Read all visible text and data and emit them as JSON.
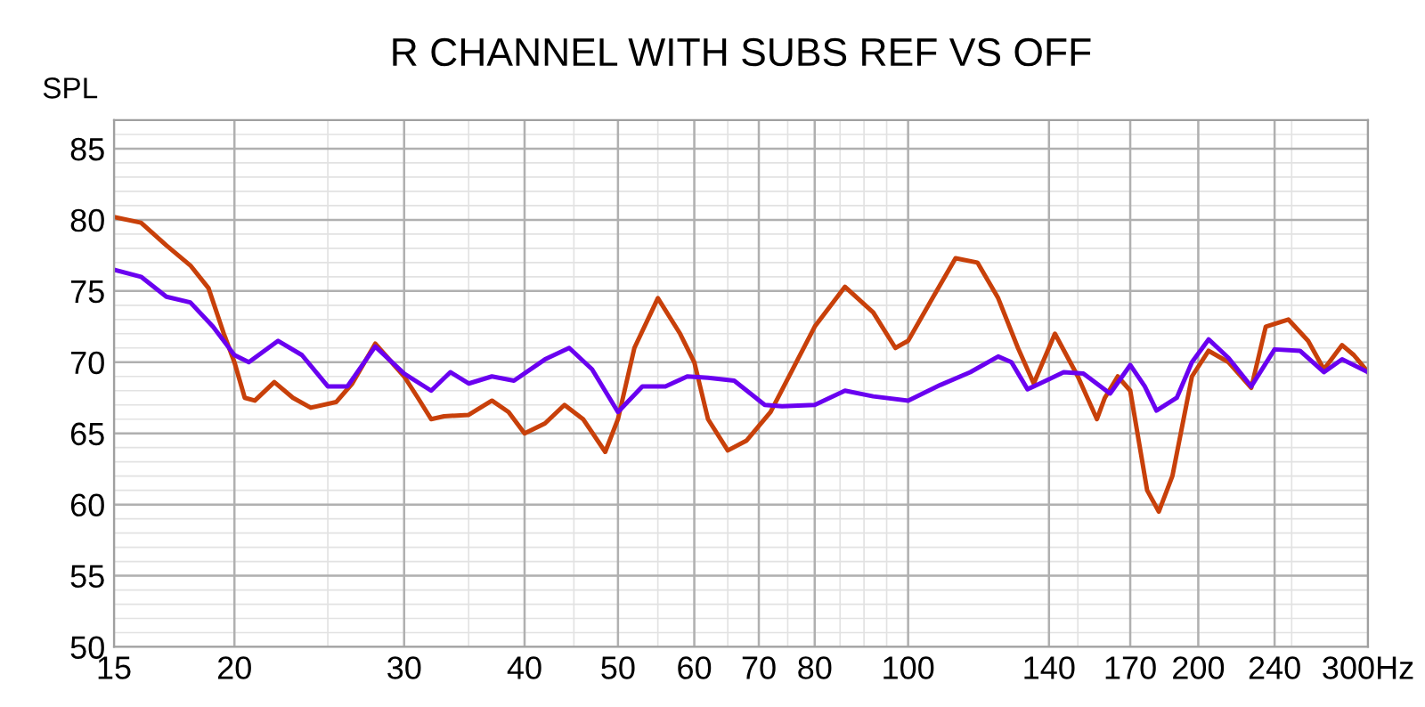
{
  "chart_data": {
    "type": "line",
    "title": "R CHANNEL WITH SUBS REF VS OFF",
    "ylabel": "SPL",
    "log": "x",
    "grid": true,
    "legend": false,
    "line_style": "solid",
    "marker": "none",
    "xlim": [
      15,
      300
    ],
    "ylim": [
      50,
      87
    ],
    "xticks": [
      15,
      20,
      30,
      40,
      50,
      60,
      70,
      80,
      100,
      140,
      170,
      200,
      240,
      {
        "value": 300,
        "label": "300Hz"
      }
    ],
    "yticks": [
      50,
      55,
      60,
      65,
      70,
      75,
      80,
      85
    ],
    "series": [
      {
        "color": "#c8400a",
        "x": [
          15,
          16,
          17,
          18,
          18.8,
          19.5,
          20,
          20.5,
          21,
          22,
          23,
          24,
          25.5,
          26.5,
          28,
          30,
          31,
          32,
          33,
          35,
          37,
          38.5,
          40,
          42,
          44,
          46,
          48.5,
          50,
          52,
          55,
          58,
          60,
          62,
          65,
          68,
          72,
          80,
          86,
          92,
          97,
          100,
          106,
          112,
          118,
          124,
          130,
          135,
          142,
          150,
          157,
          160,
          165,
          170,
          177,
          182,
          188,
          197,
          205,
          215,
          227,
          235,
          248,
          260,
          270,
          282,
          290,
          300
        ],
        "values": [
          80.2,
          79.8,
          78.2,
          76.8,
          75.2,
          72,
          70,
          67.5,
          67.3,
          68.6,
          67.5,
          66.8,
          67.2,
          68.5,
          71.3,
          69,
          67.5,
          66,
          66.2,
          66.3,
          67.3,
          66.5,
          65,
          65.7,
          67,
          66,
          63.7,
          66,
          71,
          74.5,
          72,
          70,
          66,
          63.8,
          64.5,
          66.5,
          72.5,
          75.3,
          73.5,
          71,
          71.5,
          74.5,
          77.3,
          77,
          74.5,
          71,
          68.5,
          72,
          69,
          66,
          67.5,
          69,
          68,
          61,
          59.5,
          62,
          69,
          70.8,
          70,
          68.2,
          72.5,
          73,
          71.5,
          69.5,
          71.2,
          70.5,
          69.3
        ]
      },
      {
        "color": "#6a00f0",
        "x": [
          15,
          16,
          17,
          18,
          19,
          20,
          20.7,
          22.2,
          23.5,
          25,
          26.2,
          28,
          30,
          32,
          33.5,
          35,
          37,
          39,
          42,
          44.5,
          47,
          50,
          53,
          56,
          59,
          62,
          66,
          71,
          74,
          80,
          86,
          92,
          100,
          108,
          116,
          124,
          128,
          133,
          137,
          145,
          152,
          162,
          170,
          176,
          181,
          190,
          197,
          205,
          215,
          227,
          240,
          255,
          270,
          282,
          300
        ],
        "values": [
          76.5,
          76,
          74.6,
          74.2,
          72.5,
          70.5,
          70,
          71.5,
          70.5,
          68.3,
          68.3,
          71.1,
          69.2,
          68,
          69.3,
          68.5,
          69,
          68.7,
          70.2,
          71,
          69.5,
          66.5,
          68.3,
          68.3,
          69,
          68.9,
          68.7,
          67,
          66.9,
          67,
          68,
          67.6,
          67.3,
          68.4,
          69.3,
          70.4,
          70,
          68.1,
          68.5,
          69.3,
          69.2,
          67.8,
          69.8,
          68.3,
          66.6,
          67.5,
          70,
          71.6,
          70.3,
          68.3,
          70.9,
          70.8,
          69.3,
          70.2,
          69.3
        ]
      }
    ]
  }
}
